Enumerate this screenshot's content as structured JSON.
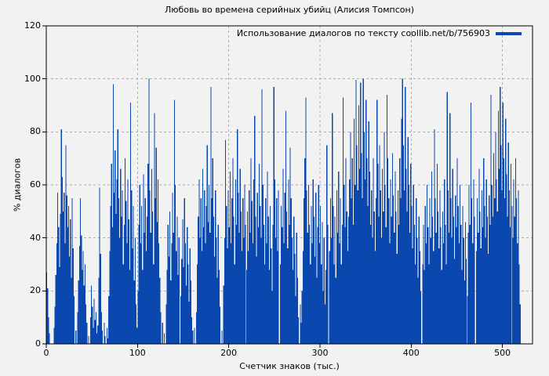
{
  "chart_data": {
    "type": "bar",
    "title": "Любовь во времена серийных убийц (Алисия Томпсон)",
    "legend_label": "Использование диалогов по тексту coollib.net/b/756903",
    "xlabel": "Счетчик знаков (тыс.)",
    "ylabel": "% диалогов",
    "xlim": [
      0,
      533
    ],
    "ylim": [
      0,
      120
    ],
    "xticks": [
      0,
      100,
      200,
      300,
      400,
      500
    ],
    "yticks": [
      0,
      20,
      40,
      60,
      80,
      100,
      120
    ],
    "grid": true,
    "legend_position": "top-right-inside",
    "colors": {
      "bar": "#0a47ae",
      "background": "#f2f2f2",
      "grid": "#b0b0b0",
      "axis": "#000000"
    },
    "x_start": 0,
    "x_step": 1,
    "values": [
      27,
      21,
      10,
      4,
      0,
      0,
      0,
      0,
      6,
      14,
      26,
      38,
      57,
      44,
      29,
      49,
      81,
      63,
      50,
      57,
      38,
      75,
      56,
      44,
      52,
      33,
      47,
      25,
      55,
      36,
      18,
      0,
      5,
      0,
      12,
      24,
      37,
      55,
      41,
      28,
      35,
      22,
      30,
      15,
      8,
      0,
      3,
      0,
      10,
      22,
      14,
      6,
      17,
      9,
      12,
      4,
      7,
      25,
      59,
      34,
      12,
      5,
      0,
      8,
      3,
      0,
      6,
      2,
      18,
      35,
      52,
      68,
      44,
      98,
      57,
      73,
      49,
      62,
      81,
      55,
      40,
      66,
      48,
      58,
      30,
      45,
      70,
      54,
      38,
      62,
      47,
      28,
      91,
      58,
      36,
      52,
      24,
      40,
      15,
      6,
      20,
      45,
      60,
      38,
      52,
      28,
      64,
      42,
      55,
      35,
      48,
      68,
      100,
      58,
      42,
      66,
      50,
      30,
      87,
      55,
      74,
      46,
      62,
      38,
      25,
      12,
      0,
      8,
      0,
      4,
      0,
      15,
      28,
      45,
      33,
      50,
      24,
      38,
      57,
      42,
      92,
      60,
      35,
      48,
      26,
      40,
      0,
      18,
      32,
      47,
      29,
      55,
      38,
      22,
      44,
      30,
      16,
      36,
      24,
      10,
      5,
      0,
      6,
      0,
      12,
      30,
      48,
      62,
      40,
      55,
      35,
      66,
      44,
      58,
      38,
      52,
      75,
      46,
      60,
      42,
      97,
      55,
      70,
      48,
      33,
      58,
      40,
      25,
      45,
      28,
      14,
      0,
      5,
      0,
      22,
      40,
      77,
      52,
      36,
      58,
      44,
      65,
      38,
      55,
      70,
      48,
      30,
      62,
      45,
      81,
      57,
      42,
      66,
      50,
      35,
      55,
      40,
      60,
      45,
      28,
      50,
      35,
      58,
      42,
      70,
      54,
      38,
      62,
      86,
      48,
      33,
      57,
      44,
      68,
      52,
      40,
      96,
      60,
      45,
      30,
      55,
      38,
      65,
      48,
      28,
      52,
      36,
      20,
      45,
      97,
      62,
      40,
      55,
      35,
      58,
      0,
      30,
      52,
      44,
      66,
      38,
      57,
      88,
      50,
      36,
      62,
      45,
      74,
      55,
      40,
      28,
      48,
      34,
      18,
      42,
      25,
      10,
      0,
      15,
      8,
      20,
      35,
      55,
      70,
      93,
      58,
      42,
      60,
      45,
      30,
      52,
      38,
      62,
      48,
      33,
      57,
      25,
      44,
      60,
      38,
      52,
      30,
      46,
      20,
      40,
      15,
      28,
      75,
      45,
      0,
      35,
      55,
      40,
      87,
      52,
      30,
      48,
      25,
      58,
      42,
      65,
      38,
      55,
      30,
      45,
      93,
      60,
      44,
      70,
      50,
      35,
      48,
      62,
      80,
      55,
      70,
      45,
      85,
      60,
      99.6,
      75,
      58,
      90,
      66,
      98.5,
      72,
      55,
      100,
      80,
      62,
      92,
      70,
      52,
      84,
      65,
      45,
      58,
      40,
      70,
      50,
      35,
      55,
      92,
      68,
      48,
      75,
      58,
      40,
      66,
      50,
      80,
      60,
      44,
      94,
      70,
      55,
      38,
      62,
      48,
      72,
      56,
      42,
      65,
      50,
      34,
      58,
      45,
      70,
      55,
      85,
      100,
      75,
      58,
      97,
      66,
      50,
      78,
      60,
      42,
      68,
      52,
      36,
      60,
      45,
      30,
      55,
      40,
      25,
      48,
      35,
      20,
      0,
      30,
      45,
      28,
      52,
      38,
      60,
      44,
      30,
      55,
      40,
      65,
      48,
      35,
      81,
      55,
      42,
      68,
      50,
      36,
      58,
      44,
      28,
      50,
      38,
      62,
      45,
      30,
      95,
      58,
      42,
      87,
      55,
      40,
      66,
      48,
      32,
      56,
      44,
      70,
      52,
      38,
      60,
      45,
      28,
      52,
      40,
      24,
      46,
      32,
      18,
      42,
      60,
      45,
      91,
      55,
      38,
      62,
      48,
      0,
      35,
      55,
      42,
      66,
      50,
      36,
      58,
      44,
      70,
      52,
      40,
      62,
      48,
      34,
      56,
      45,
      94,
      60,
      48,
      72,
      55,
      80,
      62,
      50,
      88,
      66,
      97,
      75,
      58,
      91,
      70,
      55,
      85,
      64,
      48,
      76,
      58,
      44,
      68,
      52,
      40,
      62,
      48,
      70,
      55,
      38,
      58,
      30,
      15
    ]
  }
}
